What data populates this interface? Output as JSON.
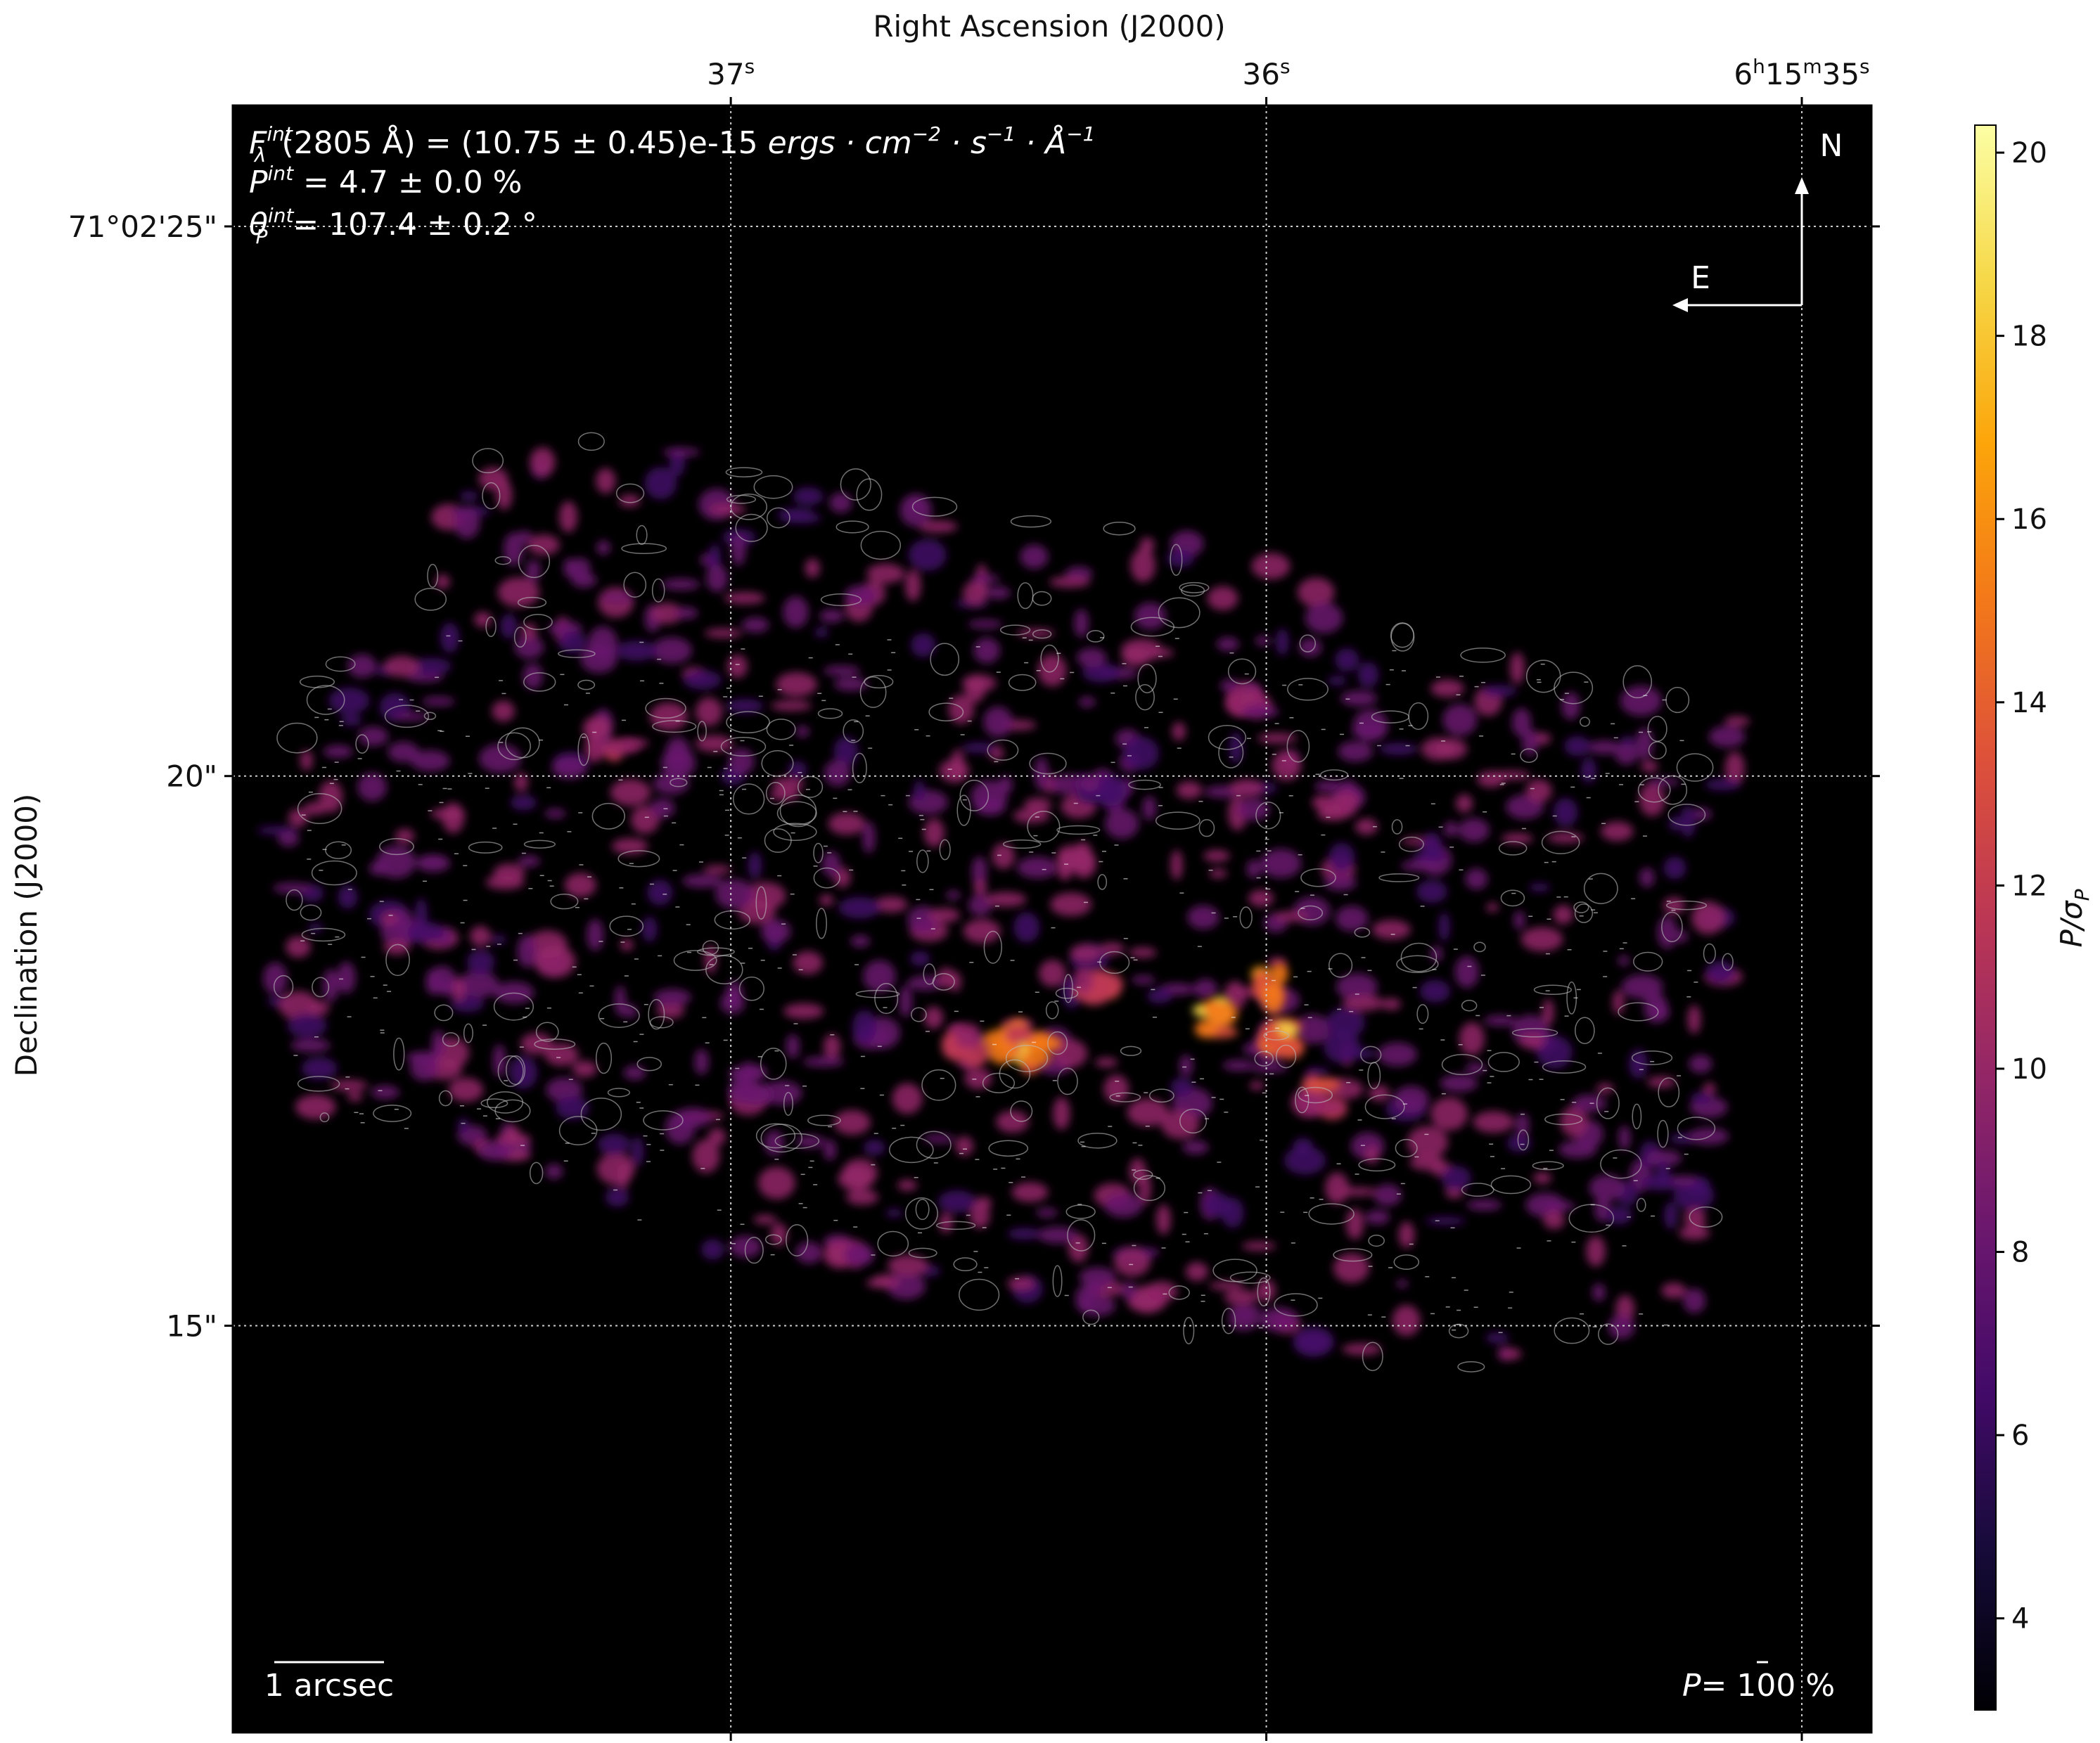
{
  "chart_data": {
    "type": "heatmap",
    "title": "",
    "xlabel": "Right Ascension (J2000)",
    "ylabel": "Declination (J2000)",
    "xticks": [
      {
        "label": "37",
        "sup": "s",
        "value": 37
      },
      {
        "label": "36",
        "sup": "s",
        "value": 36
      },
      {
        "label": "6h15m35",
        "sup": "s",
        "value": 35,
        "display_parts": [
          "6",
          "h",
          "15",
          "m",
          "35",
          "s"
        ]
      }
    ],
    "yticks": [
      {
        "label": "71°02'25\"",
        "value": 25
      },
      {
        "label": "20\"",
        "value": 20
      },
      {
        "label": "15\"",
        "value": 15
      }
    ],
    "xlim_s": [
      37.93,
      34.87
    ],
    "ylim_arcsec": [
      11.3,
      26.1
    ],
    "grid": true,
    "annotations": {
      "flux_line": {
        "prefix": "F",
        "sup": "int",
        "sub": "λ",
        "text": "(2805 Å) = (10.75 ± 0.45)e-15 ",
        "units": "ergs · cm",
        "u1": "−2",
        "u2": " · s",
        "u3": "−1",
        "u4": " · Å",
        "u5": "−1"
      },
      "pol_line": {
        "prefix": "P",
        "sup": "int",
        "text": " = 4.7 ± 0.0 %"
      },
      "angle_line": {
        "prefix": "θ",
        "sub": "P",
        "sup": "int",
        "text": " = 107.4 ± 0.2 °"
      },
      "north_label": "N",
      "east_label": "E",
      "scalebar_label": "1 arcsec",
      "pol_scale_label": "P= 100 %",
      "pol_scale_prefix": "P",
      "pol_scale_value": "= 100 %"
    },
    "colorbar": {
      "label": "P/σP",
      "label_main": "P/σ",
      "label_sub": "P",
      "colormap": "inferno",
      "range": [
        3.0,
        20.3
      ],
      "ticks": [
        4,
        6,
        8,
        10,
        12,
        14,
        16,
        18,
        20
      ]
    },
    "map_background": "#000000",
    "contour_color": "#bbbbbb",
    "vector_color": "#ffffff",
    "grid_color": "#cccccc"
  }
}
